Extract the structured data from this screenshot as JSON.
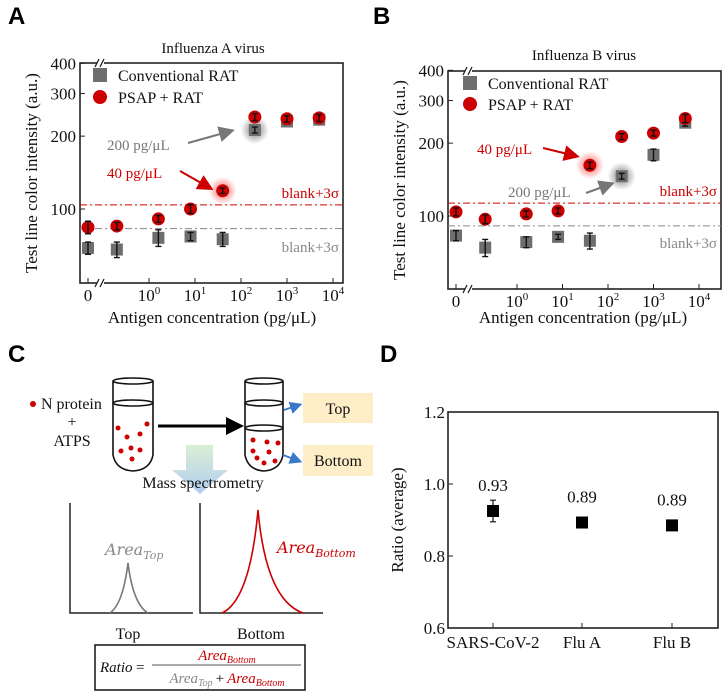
{
  "panel_labels": [
    "A",
    "B",
    "C",
    "D"
  ],
  "chart_data": [
    {
      "type": "scatter",
      "title": "Influenza A virus",
      "xlabel": "Antigen concentration (pg/μL)",
      "ylabel": "Test line color intensity (a.u.)",
      "x_scale": "log (with broken axis at 0)",
      "y_scale": "log",
      "ylim": [
        50,
        400
      ],
      "yticks": [
        100,
        200,
        300,
        400
      ],
      "xticks": [
        "0",
        "10^0",
        "10^1",
        "10^2",
        "10^3",
        "10^4"
      ],
      "x": [
        0,
        0.2,
        1.6,
        8,
        40,
        200,
        1000,
        5000
      ],
      "legend_placement": "top-left",
      "series": [
        {
          "name": "Conventional RAT",
          "marker": "square",
          "color": "#6e6e6e",
          "values": [
            69,
            68,
            76,
            77,
            75,
            212,
            230,
            234
          ],
          "errors": [
            4,
            5,
            6,
            3,
            5,
            6,
            6,
            6
          ]
        },
        {
          "name": "PSAP + RAT",
          "marker": "circle",
          "color": "#cc0000",
          "values": [
            84,
            85,
            91,
            100,
            119,
            240,
            236,
            238
          ],
          "errors": [
            5,
            3,
            3,
            4,
            3,
            8,
            7,
            8
          ]
        }
      ],
      "thresholds": [
        {
          "label": "blank+3σ",
          "value": 104,
          "color": "#cc0000"
        },
        {
          "label": "blank+3σ",
          "value": 83,
          "color": "#888888"
        }
      ],
      "annotations": [
        {
          "text": "200 pg/μL",
          "x": 200,
          "series": "Conventional RAT",
          "color": "#777777"
        },
        {
          "text": "40 pg/μL",
          "x": 40,
          "series": "PSAP + RAT",
          "color": "#cc0000"
        }
      ]
    },
    {
      "type": "scatter",
      "title": "Influenza B virus",
      "xlabel": "Antigen concentration (pg/μL)",
      "ylabel": "Test line color intensity (a.u.)",
      "x_scale": "log (with broken axis at 0)",
      "y_scale": "log",
      "ylim": [
        50,
        400
      ],
      "yticks": [
        100,
        200,
        300,
        400
      ],
      "xticks": [
        "0",
        "10^0",
        "10^1",
        "10^2",
        "10^3",
        "10^4"
      ],
      "x": [
        0,
        0.2,
        1.6,
        8,
        40,
        200,
        1000,
        5000
      ],
      "legend_placement": "top-left",
      "series": [
        {
          "name": "Conventional RAT",
          "marker": "square",
          "color": "#6e6e6e",
          "values": [
            83,
            74,
            78,
            82,
            79,
            146,
            179,
            243
          ],
          "errors": [
            4,
            6,
            4,
            2,
            6,
            4,
            10,
            8
          ]
        },
        {
          "name": "PSAP + RAT",
          "marker": "circle",
          "color": "#cc0000",
          "values": [
            104,
            97,
            102,
            105,
            162,
            213,
            220,
            253
          ],
          "errors": [
            4,
            4,
            3,
            3,
            5,
            6,
            6,
            10
          ]
        }
      ],
      "thresholds": [
        {
          "label": "blank+3σ",
          "value": 113,
          "color": "#cc0000"
        },
        {
          "label": "blank+3σ",
          "value": 91,
          "color": "#888888"
        }
      ],
      "annotations": [
        {
          "text": "40 pg/μL",
          "x": 40,
          "series": "PSAP + RAT",
          "color": "#cc0000"
        },
        {
          "text": "200 pg/μL",
          "x": 200,
          "series": "Conventional RAT",
          "color": "#777777"
        }
      ]
    },
    {
      "type": "scatter",
      "title": "",
      "xlabel": "",
      "ylabel": "Ratio (average)",
      "ylim": [
        0.6,
        1.2
      ],
      "yticks": [
        "0.6",
        "0.8",
        "1.0",
        "1.2"
      ],
      "categories": [
        "SARS-CoV-2",
        "Flu A",
        "Flu B"
      ],
      "values": [
        0.925,
        0.893,
        0.885
      ],
      "errors": [
        0.03,
        0.008,
        0.01
      ],
      "data_labels": [
        "0.93",
        "0.89",
        "0.89"
      ],
      "marker": "square",
      "color": "#000000"
    }
  ],
  "panel_c": {
    "legend_dot": "N protein",
    "plus": "+",
    "atps": "ATPS",
    "top_box": "Top",
    "bottom_box": "Bottom",
    "process": "Mass spectrometry",
    "area_word": "Area",
    "top_sub": "Top",
    "bottom_sub": "Bottom",
    "chart_top_label": "Top",
    "chart_bottom_label": "Bottom",
    "ratio_word": "Ratio",
    "equals": "=",
    "plus_sign": "+",
    "colors": {
      "box_fill": "#fdeec8",
      "dot": "#cc0000",
      "arrow_blue": "#3a78c9",
      "top_peak": "#777777",
      "bottom_peak": "#cc0000"
    }
  }
}
